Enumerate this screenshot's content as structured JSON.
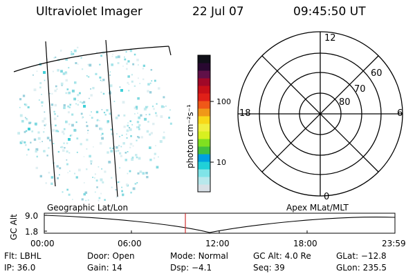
{
  "header": {
    "instrument": "Ultraviolet Imager",
    "date": "22 Jul 07",
    "time": "09:45:50 UT"
  },
  "colorbar": {
    "label": "photon cm⁻²s⁻¹",
    "ticks": [
      "100",
      "10"
    ],
    "colors": [
      "#d8e0e6",
      "#b8e8ec",
      "#80e4e8",
      "#20d0d8",
      "#00a0e0",
      "#40c040",
      "#80e020",
      "#d8f020",
      "#f0f040",
      "#f8d818",
      "#f09818",
      "#f05818",
      "#e02018",
      "#c81018",
      "#a00828",
      "#601048",
      "#280830",
      "#101018"
    ]
  },
  "geo_panel": {
    "label": "Geographic Lat/Lon",
    "dot_color": "#40d0d8"
  },
  "polar_panel": {
    "label": "Apex MLat/MLT",
    "mlt_labels": [
      "12",
      "6",
      "0",
      "18"
    ],
    "lat_labels": [
      "60",
      "70",
      "80"
    ]
  },
  "altitude_plot": {
    "ylabel": "GC Alt",
    "yticks": [
      "9.0",
      "1.8"
    ],
    "xticks": [
      "00:00",
      "06:00",
      "12:00",
      "18:00",
      "23:59"
    ],
    "marker_color": "#d03030",
    "marker_time": "09:45"
  },
  "status": {
    "row1": [
      {
        "label": "Flt:",
        "value": "LBHL"
      },
      {
        "label": "Door:",
        "value": "Open"
      },
      {
        "label": "Mode:",
        "value": "Normal"
      },
      {
        "label": "GC Alt:",
        "value": "4.0 Re"
      },
      {
        "label": "GLat:",
        "value": "−12.8"
      }
    ],
    "row2": [
      {
        "label": "IP:",
        "value": "36.0"
      },
      {
        "label": "Gain:",
        "value": "14"
      },
      {
        "label": "Dsp:",
        "value": "−4.1"
      },
      {
        "label": "Seq:",
        "value": "39"
      },
      {
        "label": "GLon:",
        "value": "235.5"
      }
    ]
  }
}
